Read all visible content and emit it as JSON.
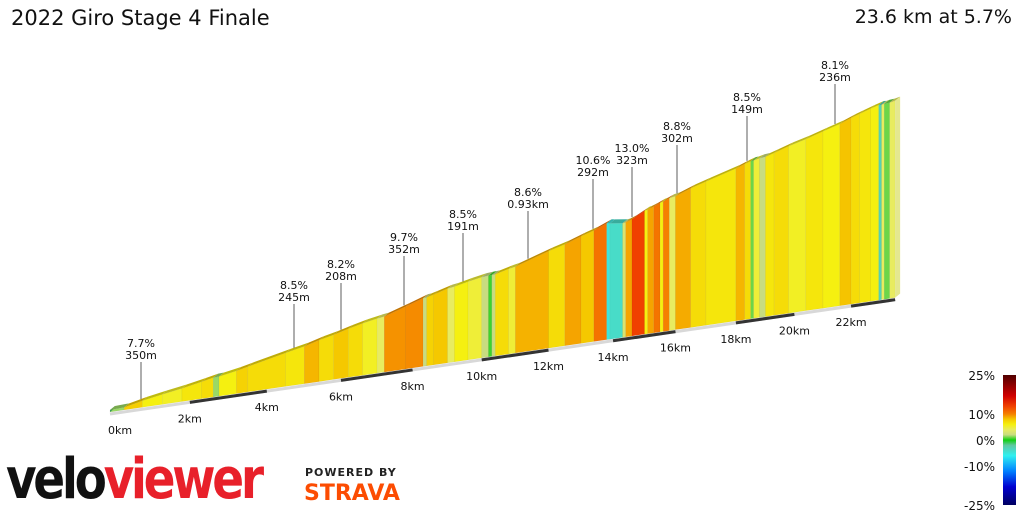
{
  "header": {
    "title": "2022 Giro Stage 4 Finale",
    "summary": "23.6 km at 5.7%"
  },
  "branding": {
    "logo_part1": "velo",
    "logo_part2": "viewer",
    "powered_by": "POWERED BY",
    "strava": "STRAVA",
    "logo_colors": {
      "velo": "#111111",
      "viewer": "#e8202a",
      "strava": "#fc4c02"
    }
  },
  "chart_data": {
    "type": "area",
    "title": "2022 Giro Stage 4 Finale",
    "distance_km": 23.6,
    "avg_gradient_pct": 5.7,
    "x_ticks": [
      "0km",
      "2km",
      "4km",
      "6km",
      "8km",
      "10km",
      "12km",
      "14km",
      "16km",
      "18km",
      "20km",
      "22km"
    ],
    "x_tick_values": [
      0,
      2,
      4,
      6,
      8,
      10,
      12,
      14,
      16,
      18,
      20,
      22
    ],
    "segments_end_km_and_gradient_pct": [
      [
        0.35,
        1.5
      ],
      [
        0.8,
        7.7
      ],
      [
        1.3,
        6
      ],
      [
        1.8,
        5.5
      ],
      [
        2.3,
        6.5
      ],
      [
        2.6,
        7
      ],
      [
        2.75,
        1.5
      ],
      [
        3.2,
        6
      ],
      [
        3.5,
        7.5
      ],
      [
        4.5,
        7
      ],
      [
        5.0,
        6.5
      ],
      [
        5.4,
        8.5
      ],
      [
        5.8,
        7
      ],
      [
        6.2,
        8
      ],
      [
        6.6,
        7
      ],
      [
        7.0,
        5.5
      ],
      [
        7.2,
        4
      ],
      [
        7.8,
        9.5
      ],
      [
        8.3,
        9.7
      ],
      [
        8.4,
        2
      ],
      [
        8.6,
        7.5
      ],
      [
        9.0,
        8
      ],
      [
        9.2,
        4
      ],
      [
        9.6,
        6
      ],
      [
        10.0,
        5
      ],
      [
        10.2,
        2
      ],
      [
        10.3,
        0.5
      ],
      [
        10.4,
        2
      ],
      [
        10.8,
        7
      ],
      [
        11.0,
        5
      ],
      [
        12.0,
        8.6
      ],
      [
        12.5,
        7
      ],
      [
        13.0,
        9
      ],
      [
        13.4,
        8
      ],
      [
        13.8,
        10.6
      ],
      [
        13.9,
        -5
      ],
      [
        14.3,
        -4
      ],
      [
        14.4,
        3
      ],
      [
        14.6,
        9
      ],
      [
        15.0,
        13
      ],
      [
        15.1,
        6
      ],
      [
        15.3,
        9
      ],
      [
        15.5,
        10.5
      ],
      [
        15.6,
        6
      ],
      [
        15.8,
        10
      ],
      [
        16.0,
        4
      ],
      [
        16.5,
        8.8
      ],
      [
        17.0,
        7
      ],
      [
        18.0,
        6.5
      ],
      [
        18.3,
        8.5
      ],
      [
        18.5,
        7
      ],
      [
        18.6,
        1
      ],
      [
        18.8,
        5
      ],
      [
        19.0,
        2
      ],
      [
        19.3,
        6.5
      ],
      [
        19.8,
        7
      ],
      [
        20.4,
        5.5
      ],
      [
        21.0,
        6.5
      ],
      [
        21.6,
        6
      ],
      [
        22.0,
        8.1
      ],
      [
        22.3,
        7
      ],
      [
        22.7,
        6.5
      ],
      [
        23.0,
        6
      ],
      [
        23.1,
        -3
      ],
      [
        23.2,
        4
      ],
      [
        23.4,
        1
      ],
      [
        23.6,
        4
      ]
    ],
    "annotations": [
      {
        "km": 1.0,
        "gradient": "7.7%",
        "length": "350m"
      },
      {
        "km": 5.6,
        "gradient": "8.5%",
        "length": "245m"
      },
      {
        "km": 7.0,
        "gradient": "8.2%",
        "length": "208m"
      },
      {
        "km": 8.9,
        "gradient": "9.7%",
        "length": "352m"
      },
      {
        "km": 10.7,
        "gradient": "8.5%",
        "length": "191m"
      },
      {
        "km": 12.6,
        "gradient": "8.6%",
        "length": "0.93km"
      },
      {
        "km": 14.6,
        "gradient": "10.6%",
        "length": "292m"
      },
      {
        "km": 15.7,
        "gradient": "13.0%",
        "length": "323m"
      },
      {
        "km": 17.1,
        "gradient": "8.8%",
        "length": "302m"
      },
      {
        "km": 19.2,
        "gradient": "8.5%",
        "length": "149m"
      },
      {
        "km": 21.8,
        "gradient": "8.1%",
        "length": "236m"
      }
    ],
    "legend": {
      "labels": [
        "25%",
        "10%",
        "0%",
        "-10%",
        "-25%"
      ],
      "label_values": [
        25,
        10,
        0,
        -10,
        -25
      ],
      "color_stops": [
        {
          "pct": -25,
          "color": "#000060"
        },
        {
          "pct": -18,
          "color": "#0000d0"
        },
        {
          "pct": -12,
          "color": "#0080ff"
        },
        {
          "pct": -6,
          "color": "#30f0f0"
        },
        {
          "pct": -2,
          "color": "#60c8a0"
        },
        {
          "pct": 0,
          "color": "#10d010"
        },
        {
          "pct": 2,
          "color": "#c8dc80"
        },
        {
          "pct": 4,
          "color": "#e8ec60"
        },
        {
          "pct": 6,
          "color": "#f5f010"
        },
        {
          "pct": 8,
          "color": "#f5c800"
        },
        {
          "pct": 10,
          "color": "#f58000"
        },
        {
          "pct": 13,
          "color": "#f04000"
        },
        {
          "pct": 17,
          "color": "#d00000"
        },
        {
          "pct": 25,
          "color": "#500000"
        }
      ]
    }
  }
}
